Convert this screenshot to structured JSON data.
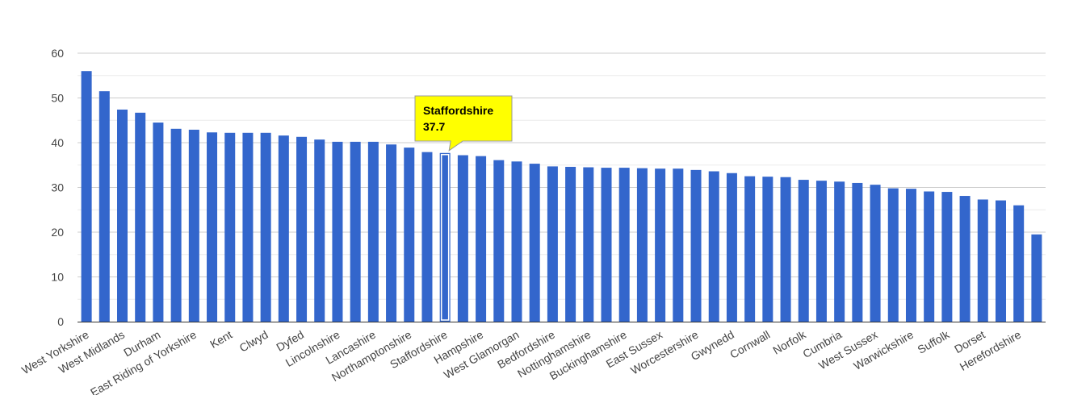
{
  "chart_data": {
    "type": "bar",
    "title": "",
    "xlabel": "",
    "ylabel": "",
    "ylim": [
      0,
      60
    ],
    "yticks": [
      0,
      10,
      20,
      30,
      40,
      50,
      60
    ],
    "grid": true,
    "categories": [
      "West Yorkshire",
      "",
      "West Midlands",
      "",
      "Durham",
      "",
      "East Riding of Yorkshire",
      "",
      "Kent",
      "",
      "Clwyd",
      "",
      "Dyfed",
      "",
      "Lincolnshire",
      "",
      "Lancashire",
      "",
      "Northamptonshire",
      "",
      "Staffordshire",
      "",
      "Hampshire",
      "",
      "West Glamorgan",
      "",
      "Bedfordshire",
      "",
      "Nottinghamshire",
      "",
      "Buckinghamshire",
      "",
      "East Sussex",
      "",
      "Worcestershire",
      "",
      "Gwynedd",
      "",
      "Cornwall",
      "",
      "Norfolk",
      "",
      "Cumbria",
      "",
      "West Sussex",
      "",
      "Warwickshire",
      "",
      "Suffolk",
      "",
      "Dorset",
      "",
      "Herefordshire",
      ""
    ],
    "values": [
      56.0,
      51.5,
      47.4,
      46.7,
      44.5,
      43.1,
      42.9,
      42.3,
      42.2,
      42.2,
      42.2,
      41.6,
      41.3,
      40.7,
      40.2,
      40.2,
      40.2,
      39.6,
      38.9,
      37.9,
      37.7,
      37.2,
      37.0,
      36.1,
      35.8,
      35.3,
      34.7,
      34.6,
      34.5,
      34.4,
      34.4,
      34.3,
      34.2,
      34.2,
      33.9,
      33.6,
      33.2,
      32.5,
      32.4,
      32.3,
      31.7,
      31.5,
      31.3,
      31.0,
      30.6,
      29.8,
      29.7,
      29.1,
      29.0,
      28.1,
      27.3,
      27.1,
      26.0,
      19.5
    ],
    "highlight_index": 20,
    "colors": {
      "bar": "#3366cc",
      "highlight_outline": "#ffffff",
      "grid": "#cccccc",
      "minor_grid": "#ebebeb",
      "axis": "#333333",
      "tooltip_bg": "#ffff00",
      "tooltip_border": "#999999"
    },
    "tooltip": {
      "category": "Staffordshire",
      "value": "37.7"
    }
  }
}
